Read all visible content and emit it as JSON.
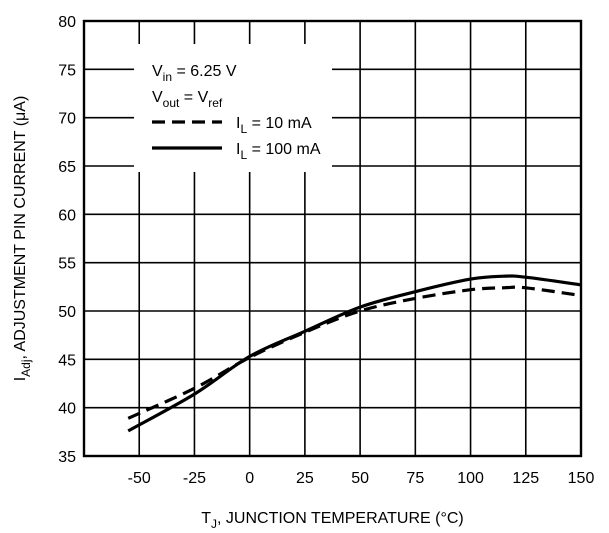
{
  "chart_data": {
    "type": "line",
    "xlabel": {
      "main": "T",
      "sub": "J",
      "rest": ", JUNCTION TEMPERATURE (°C)"
    },
    "ylabel": {
      "main": "I",
      "sub": "Adj",
      "rest": ", ADJUSTMENT PIN CURRENT (μA)"
    },
    "xlim": [
      -75,
      150
    ],
    "ylim": [
      35,
      80
    ],
    "xticks": [
      -50,
      -25,
      0,
      25,
      50,
      75,
      100,
      125,
      150
    ],
    "yticks": [
      35,
      40,
      45,
      50,
      55,
      60,
      65,
      70,
      75,
      80
    ],
    "x_gridlines": [
      -75,
      -50,
      -25,
      0,
      25,
      50,
      75,
      100,
      125,
      150
    ],
    "grid": true,
    "legend": {
      "placement": "top-left",
      "conditions": [
        {
          "main": "V",
          "sub": "in",
          "rest": " = 6.25 V"
        },
        {
          "main": "V",
          "sub": "out",
          "rest": " = V",
          "sub2": "ref"
        }
      ],
      "entries": [
        {
          "main": "I",
          "sub": "L",
          "rest": " = 10 mA",
          "style": "dashed"
        },
        {
          "main": "I",
          "sub": "L",
          "rest": " = 100 mA",
          "style": "solid"
        }
      ]
    },
    "series": [
      {
        "name": "IL = 10 mA",
        "style": "dashed",
        "x": [
          -55,
          -25,
          0,
          25,
          50,
          75,
          100,
          115,
          125,
          150
        ],
        "y": [
          38.9,
          42.0,
          45.2,
          47.8,
          50.0,
          51.3,
          52.2,
          52.4,
          52.4,
          51.6
        ]
      },
      {
        "name": "IL = 100 mA",
        "style": "solid",
        "x": [
          -55,
          -25,
          0,
          25,
          50,
          75,
          100,
          115,
          125,
          150
        ],
        "y": [
          37.6,
          41.4,
          45.3,
          47.9,
          50.4,
          52.0,
          53.3,
          53.6,
          53.5,
          52.7
        ]
      }
    ]
  }
}
